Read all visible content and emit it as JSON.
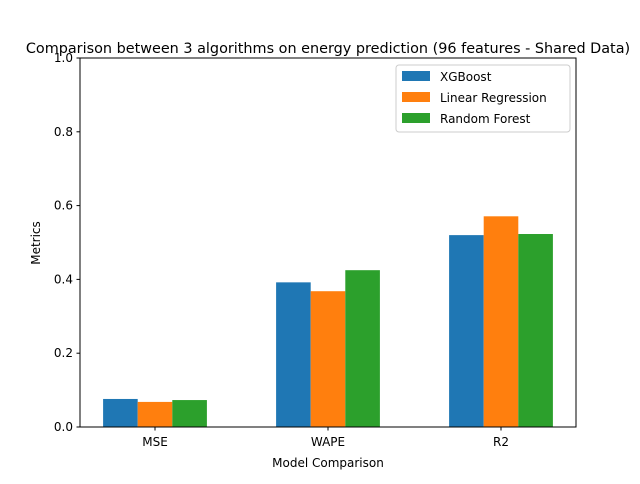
{
  "chart_data": {
    "type": "bar",
    "title": "Comparison between 3 algorithms on energy prediction (96 features - Shared Data)",
    "xlabel": "Model Comparison",
    "ylabel": "Metrics",
    "ylim": [
      0,
      1.0
    ],
    "yticks": [
      "0.0",
      "0.2",
      "0.4",
      "0.6",
      "0.8",
      "1.0"
    ],
    "categories": [
      "MSE",
      "WAPE",
      "R2"
    ],
    "series": [
      {
        "name": "XGBoost",
        "values": [
          0.076,
          0.392,
          0.52
        ],
        "color": "#1f77b4"
      },
      {
        "name": "Linear Regression",
        "values": [
          0.068,
          0.368,
          0.571
        ],
        "color": "#ff7f0e"
      },
      {
        "name": "Random Forest",
        "values": [
          0.073,
          0.425,
          0.523
        ],
        "color": "#2ca02c"
      }
    ],
    "legend_position": "top-right",
    "grid": false
  }
}
